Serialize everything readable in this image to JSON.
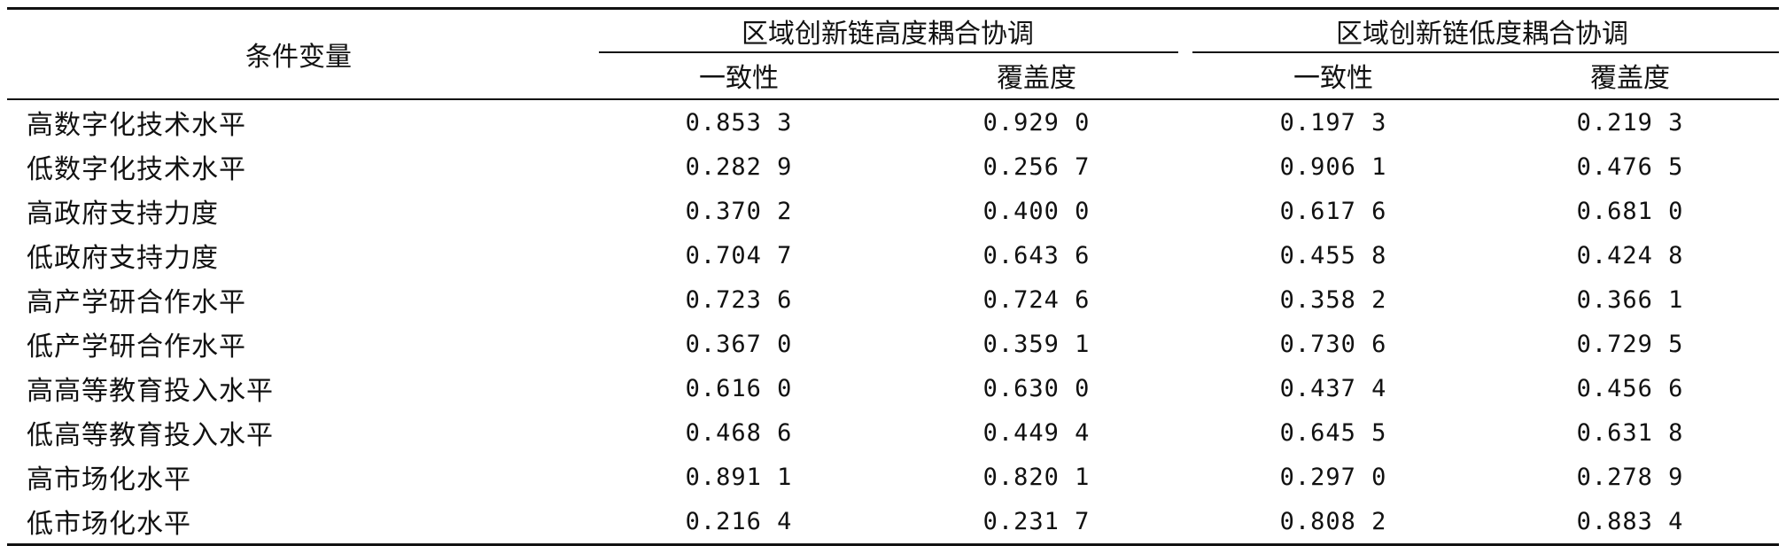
{
  "header": {
    "condition_variable": "条件变量",
    "group_high": "区域创新链高度耦合协调",
    "group_low": "区域创新链低度耦合协调",
    "consistency": "一致性",
    "coverage": "覆盖度"
  },
  "rows": [
    {
      "label": "高数字化技术水平",
      "v": [
        "0.853 3",
        "0.929 0",
        "0.197 3",
        "0.219 3"
      ]
    },
    {
      "label": "低数字化技术水平",
      "v": [
        "0.282 9",
        "0.256 7",
        "0.906 1",
        "0.476 5"
      ]
    },
    {
      "label": "高政府支持力度",
      "v": [
        "0.370 2",
        "0.400 0",
        "0.617 6",
        "0.681 0"
      ]
    },
    {
      "label": "低政府支持力度",
      "v": [
        "0.704 7",
        "0.643 6",
        "0.455 8",
        "0.424 8"
      ]
    },
    {
      "label": "高产学研合作水平",
      "v": [
        "0.723 6",
        "0.724 6",
        "0.358 2",
        "0.366 1"
      ]
    },
    {
      "label": "低产学研合作水平",
      "v": [
        "0.367 0",
        "0.359 1",
        "0.730 6",
        "0.729 5"
      ]
    },
    {
      "label": "高高等教育投入水平",
      "v": [
        "0.616 0",
        "0.630 0",
        "0.437 4",
        "0.456 6"
      ]
    },
    {
      "label": "低高等教育投入水平",
      "v": [
        "0.468 6",
        "0.449 4",
        "0.645 5",
        "0.631 8"
      ]
    },
    {
      "label": "高市场化水平",
      "v": [
        "0.891 1",
        "0.820 1",
        "0.297 0",
        "0.278 9"
      ]
    },
    {
      "label": "低市场化水平",
      "v": [
        "0.216 4",
        "0.231 7",
        "0.808 2",
        "0.883 4"
      ]
    }
  ]
}
